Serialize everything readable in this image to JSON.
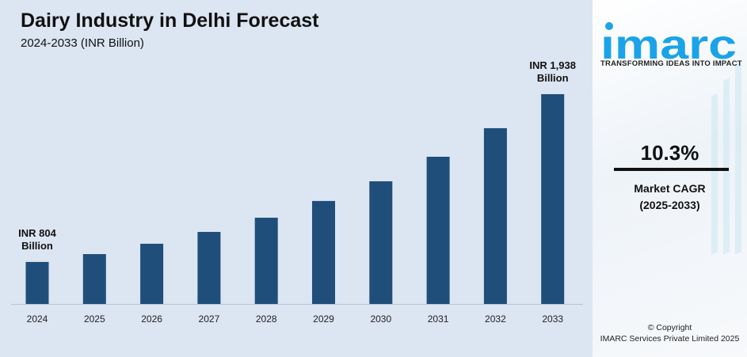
{
  "header": {
    "title": "Dairy Industry in Delhi Forecast",
    "subtitle": "2024-2033 (INR Billion)"
  },
  "chart_data": {
    "type": "bar",
    "title": "Dairy Industry in Delhi Forecast",
    "subtitle": "2024-2033 (INR Billion)",
    "categories": [
      "2024",
      "2025",
      "2026",
      "2027",
      "2028",
      "2029",
      "2030",
      "2031",
      "2032",
      "2033"
    ],
    "values": [
      804,
      857,
      927,
      1007,
      1103,
      1216,
      1349,
      1515,
      1708,
      1938
    ],
    "annotations": [
      {
        "category": "2024",
        "line1": "INR 804",
        "line2": "Billion"
      },
      {
        "category": "2033",
        "line1": "INR 1,938",
        "line2": "Billion"
      }
    ],
    "bar_color": "#1f4e7a",
    "grid": false,
    "legend": "none"
  },
  "sidebar": {
    "logo_text": "imarc",
    "tagline": "TRANSFORMING IDEAS INTO IMPACT",
    "cagr_value": "10.3%",
    "cagr_label": "Market CAGR",
    "cagr_period": "(2025-2033)",
    "copyright": "© Copyright",
    "company": "IMARC Services Private Limited 2025",
    "brand_color": "#1aa3e8"
  }
}
